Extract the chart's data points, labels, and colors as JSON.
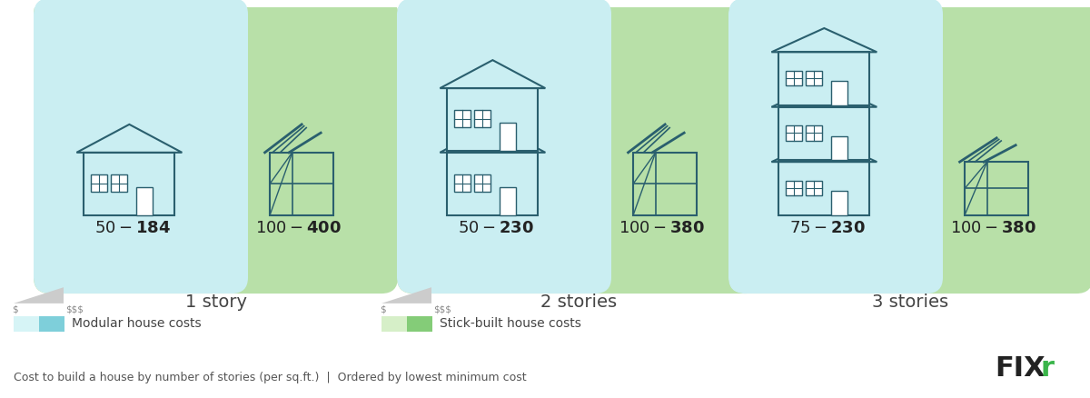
{
  "background_color": "#ffffff",
  "panels": [
    {
      "label": "1 story",
      "modular_bg": "#caeef2",
      "stickbuilt_bg": "#b8e0a8",
      "modular_range": "$50 - $184",
      "stickbuilt_range": "$100 - $400",
      "stories": 1
    },
    {
      "label": "2 stories",
      "modular_bg": "#caeef2",
      "stickbuilt_bg": "#b8e0a8",
      "modular_range": "$50 - $230",
      "stickbuilt_range": "$100 - $380",
      "stories": 2
    },
    {
      "label": "3 stories",
      "modular_bg": "#caeef2",
      "stickbuilt_bg": "#b8e0a8",
      "modular_range": "$75 - $230",
      "stickbuilt_range": "$100 - $380",
      "stories": 3
    }
  ],
  "house_line_color": "#2a5f6e",
  "house_fill_modular": "#caeef2",
  "house_fill_stickbuilt": "#b8e0a8",
  "legend_modular_colors": [
    "#d6f4f6",
    "#7ecfda"
  ],
  "legend_stickbuilt_colors": [
    "#d6efc8",
    "#84cc78"
  ],
  "modular_label": "Modular house costs",
  "stickbuilt_label": "Stick-built house costs",
  "footer_left": "Cost to build a house by number of stories (per sq.ft.)",
  "footer_sep": "|",
  "footer_right": "Ordered by lowest minimum cost",
  "text_color": "#444444",
  "range_fontsize": 13,
  "label_fontsize": 14,
  "legend_fontsize": 10,
  "footer_fontsize": 9
}
